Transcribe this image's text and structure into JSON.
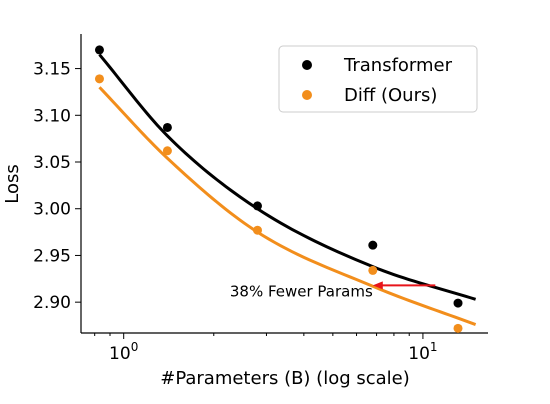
{
  "chart_data": {
    "type": "scatter",
    "xscale": "log",
    "xlim": [
      0.72,
      16.5
    ],
    "ylim": [
      2.867,
      3.187
    ],
    "xlabel": "#Parameters (B) (log scale)",
    "ylabel": "Loss",
    "x_ticks": [
      {
        "value": 1,
        "base": "10",
        "exp": "0"
      },
      {
        "value": 10,
        "base": "10",
        "exp": "1"
      }
    ],
    "y_ticks": [
      2.9,
      2.95,
      3.0,
      3.05,
      3.1,
      3.15
    ],
    "y_tick_labels": [
      "2.90",
      "2.95",
      "3.00",
      "3.05",
      "3.10",
      "3.15"
    ],
    "grid": false,
    "legend_position": "top-right",
    "series": [
      {
        "name": "Transformer",
        "color": "#000000",
        "x": [
          0.83,
          1.4,
          2.8,
          6.8,
          13.1
        ],
        "y": [
          3.17,
          3.087,
          3.003,
          2.961,
          2.899
        ],
        "fit_x": [
          0.83,
          1.4,
          2.8,
          6.8,
          15.0
        ],
        "fit_y": [
          3.165,
          3.078,
          3.0,
          2.938,
          2.903
        ]
      },
      {
        "name": "Diff (Ours)",
        "color": "#f28e1c",
        "x": [
          0.83,
          1.4,
          2.8,
          6.8,
          13.1
        ],
        "y": [
          3.139,
          3.062,
          2.977,
          2.934,
          2.872
        ],
        "fit_x": [
          0.83,
          1.4,
          2.8,
          6.8,
          15.0
        ],
        "fit_y": [
          3.13,
          3.054,
          2.975,
          2.917,
          2.876
        ]
      }
    ],
    "annotation": {
      "text": "38% Fewer Params",
      "color": "#e8141a",
      "arrow_from": [
        11.0,
        2.918
      ],
      "arrow_to": [
        6.8,
        2.918
      ]
    }
  }
}
